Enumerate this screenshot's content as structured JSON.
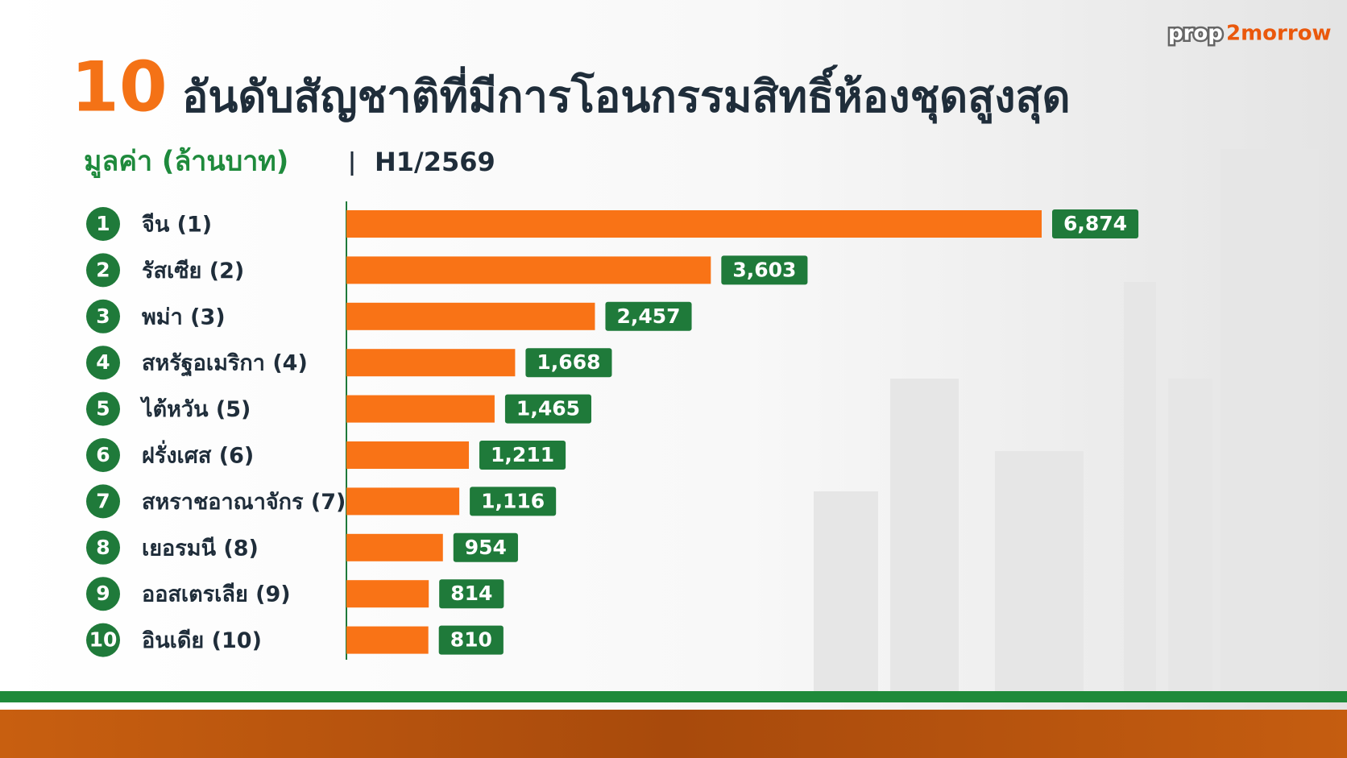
{
  "logo": [
    "prop",
    "2morrow"
  ],
  "chart_data": {
    "type": "bar",
    "orientation": "horizontal",
    "title_rank": "10",
    "title": "อันดับสัญชาติที่มีการโอนกรรมสิทธิ์ห้องชุดสูงสุด",
    "subtitle": "มูลค่า (ล้านบาท)",
    "period": "H1/2569",
    "ranks": [
      1,
      2,
      3,
      4,
      5,
      6,
      7,
      8,
      9,
      10
    ],
    "categories": [
      "จีน (1)",
      "รัสเซีย (2)",
      "พม่า (3)",
      "สหรัฐอเมริกา (4)",
      "ไต้หวัน (5)",
      "ฝรั่งเศส (6)",
      "สหราชอาณาจักร (7)",
      "เยอรมนี (8)",
      "ออสเตรเลีย (9)",
      "อินเดีย (10)"
    ],
    "values": [
      6874,
      3603,
      2457,
      1668,
      1465,
      1211,
      1116,
      954,
      814,
      810
    ],
    "value_labels": [
      "6,874",
      "3,603",
      "2,457",
      "1,668",
      "1,465",
      "1,211",
      "1,116",
      "954",
      "814",
      "810"
    ],
    "color": "#f97316",
    "label_color": "#1f7a3a",
    "rank_color": "#1f7a3a"
  }
}
